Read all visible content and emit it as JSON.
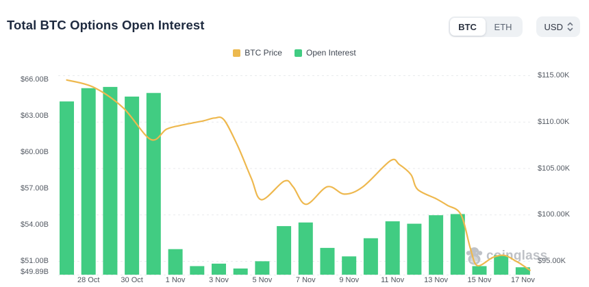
{
  "header": {
    "title": "Total BTC Options Open Interest"
  },
  "controls": {
    "coin_options": [
      {
        "label": "BTC",
        "active": true
      },
      {
        "label": "ETH",
        "active": false
      }
    ],
    "currency_label": "USD"
  },
  "legend": [
    {
      "label": "BTC Price",
      "color": "#ecb94f"
    },
    {
      "label": "Open Interest",
      "color": "#41cc82"
    }
  ],
  "watermark": {
    "text": "coinglass"
  },
  "chart_data": {
    "type": "combo-bar-line",
    "categories": [
      "27 Oct",
      "28 Oct",
      "29 Oct",
      "30 Oct",
      "31 Oct",
      "1 Nov",
      "2 Nov",
      "3 Nov",
      "4 Nov",
      "5 Nov",
      "6 Nov",
      "7 Nov",
      "8 Nov",
      "9 Nov",
      "10 Nov",
      "11 Nov",
      "12 Nov",
      "13 Nov",
      "14 Nov",
      "15 Nov",
      "16 Nov",
      "17 Nov"
    ],
    "x_tick_labels": [
      "28 Oct",
      "30 Oct",
      "1 Nov",
      "3 Nov",
      "5 Nov",
      "7 Nov",
      "9 Nov",
      "11 Nov",
      "13 Nov",
      "15 Nov",
      "17 Nov"
    ],
    "x_tick_days": [
      1,
      3,
      5,
      7,
      9,
      11,
      13,
      15,
      17,
      19,
      21
    ],
    "series": [
      {
        "name": "Open Interest",
        "type": "bar",
        "axis": "left",
        "unit": "$B",
        "color": "#41cc82",
        "values": [
          64.2,
          65.3,
          65.4,
          64.6,
          64.9,
          52.0,
          50.6,
          50.8,
          50.4,
          51.0,
          53.9,
          54.2,
          52.1,
          51.4,
          52.9,
          54.3,
          54.1,
          54.8,
          54.9,
          50.6,
          51.5,
          50.5
        ]
      },
      {
        "name": "BTC Price",
        "type": "line",
        "axis": "right",
        "unit": "$K",
        "color": "#eeb84e",
        "x_unit": "day_index",
        "points": [
          [
            0,
            114.5
          ],
          [
            1.25,
            113.7
          ],
          [
            2.6,
            111.5
          ],
          [
            3.86,
            108.1
          ],
          [
            4.59,
            109.2
          ],
          [
            5.22,
            109.6
          ],
          [
            6.29,
            110.1
          ],
          [
            6.8,
            110.4
          ],
          [
            7.24,
            110.2
          ],
          [
            7.87,
            107.4
          ],
          [
            8.5,
            103.9
          ],
          [
            8.97,
            101.6
          ],
          [
            10.01,
            103.6
          ],
          [
            10.42,
            103.0
          ],
          [
            11.02,
            101.1
          ],
          [
            12.0,
            103.0
          ],
          [
            12.79,
            102.2
          ],
          [
            13.64,
            103.0
          ],
          [
            14.9,
            105.8
          ],
          [
            15.31,
            105.4
          ],
          [
            15.85,
            104.3
          ],
          [
            16.16,
            102.7
          ],
          [
            17.01,
            101.7
          ],
          [
            17.52,
            101.0
          ],
          [
            18.15,
            100.0
          ],
          [
            18.59,
            96.3
          ],
          [
            18.91,
            94.5
          ],
          [
            19.63,
            95.4
          ],
          [
            20.17,
            95.6
          ],
          [
            20.67,
            95.0
          ],
          [
            20.89,
            94.7
          ],
          [
            21.33,
            94.0
          ]
        ]
      }
    ],
    "left_axis": {
      "title": "Open Interest",
      "tick_labels": [
        "$66.00B",
        "$63.00B",
        "$60.00B",
        "$57.00B",
        "$54.00B",
        "$51.00B",
        "$49.89B"
      ],
      "tick_values": [
        66,
        63,
        60,
        57,
        54,
        51,
        49.89
      ],
      "min": 49.89,
      "max": 66.9
    },
    "right_axis": {
      "title": "BTC Price",
      "tick_labels": [
        "$115.00K",
        "$110.00K",
        "$105.00K",
        "$100.00K",
        "$95.00K"
      ],
      "tick_values": [
        115,
        110,
        105,
        100,
        95
      ],
      "min": 93.5,
      "max": 115.5
    },
    "grid": "horizontal dashed lines at right-axis ticks and baseline",
    "legend_position": "top-center"
  }
}
